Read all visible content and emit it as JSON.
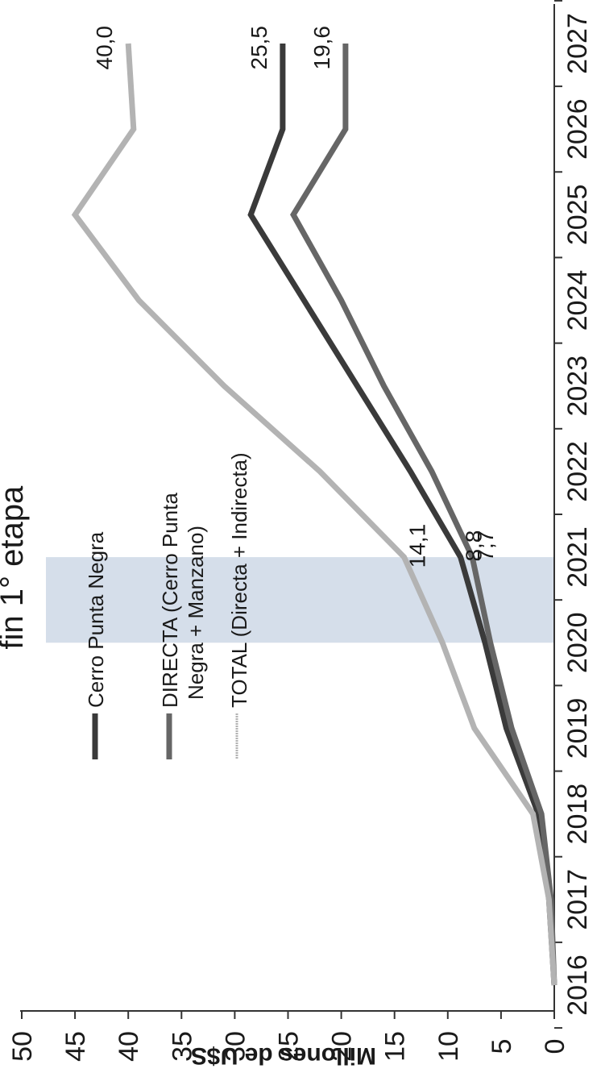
{
  "chart_data": {
    "type": "line",
    "orientation": "rotated-90-clockwise",
    "ylabel": "Millones de U$S",
    "ylim": [
      0,
      50
    ],
    "yticks": [
      "0",
      "5",
      "10",
      "15",
      "20",
      "25",
      "30",
      "35",
      "40",
      "45",
      "50"
    ],
    "categories": [
      "2016",
      "2017",
      "2018",
      "2019",
      "2020",
      "2021",
      "2022",
      "2023",
      "2024",
      "2025",
      "2026",
      "2027"
    ],
    "series": [
      {
        "name": "Cerro Punta Negra",
        "color": "#3a3a3a",
        "values": [
          0,
          0.5,
          1.5,
          4.5,
          6.5,
          8.8,
          13.5,
          18.5,
          23.5,
          28.5,
          25.5,
          25.5
        ]
      },
      {
        "name": "DIRECTA (Cerro Punta Negra + Manzano)",
        "color": "#666666",
        "values": [
          0,
          0.3,
          1.2,
          4,
          6,
          7.7,
          11.5,
          16,
          20,
          24.5,
          19.6,
          19.6
        ]
      },
      {
        "name": "TOTAL (Directa + Indirecta)",
        "color": "#b3b3b3",
        "values": [
          0,
          0.5,
          2,
          7.5,
          10.5,
          14.1,
          22,
          31,
          39,
          45,
          39.5,
          40
        ]
      }
    ],
    "legend_lines": [
      [
        "Cerro Punta Negra"
      ],
      [
        "DIRECTA (Cerro Punta",
        "Negra + Manzano)"
      ],
      [
        "TOTAL (Directa + Indirecta)"
      ]
    ],
    "highlight": {
      "from": "2020",
      "to": "2021",
      "label": "fin 1° etapa",
      "color": "#d5deea"
    },
    "data_labels": [
      {
        "series": 0,
        "category": "2021",
        "text": "8,8"
      },
      {
        "series": 1,
        "category": "2021",
        "text": "7,7"
      },
      {
        "series": 2,
        "category": "2021",
        "text": "14,1"
      },
      {
        "series": 0,
        "category": "2027",
        "text": "25,5"
      },
      {
        "series": 1,
        "category": "2027",
        "text": "19,6"
      },
      {
        "series": 2,
        "category": "2027",
        "text": "40,0"
      }
    ],
    "grid": false,
    "legend_position": "upper-left"
  }
}
